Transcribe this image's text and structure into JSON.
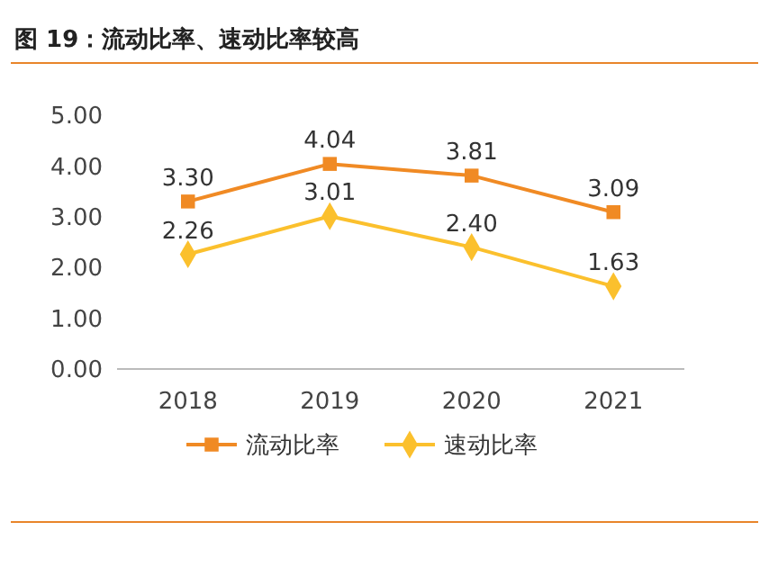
{
  "chart_data": {
    "type": "line",
    "title": "图 19：流动比率、速动比率较高",
    "categories": [
      "2018",
      "2019",
      "2020",
      "2021"
    ],
    "series": [
      {
        "name": "流动比率",
        "color": "#f08a24",
        "values": [
          3.3,
          4.04,
          3.81,
          3.09
        ],
        "value_labels": [
          "3.30",
          "4.04",
          "3.81",
          "3.09"
        ],
        "marker": "square"
      },
      {
        "name": "速动比率",
        "color": "#fbc02d",
        "values": [
          2.26,
          3.01,
          2.4,
          1.63
        ],
        "value_labels": [
          "2.26",
          "3.01",
          "2.40",
          "1.63"
        ],
        "marker": "diamond"
      }
    ],
    "ylim": [
      0,
      5
    ],
    "yticks": [
      {
        "value": 0,
        "label": "0.00"
      },
      {
        "value": 1,
        "label": "1.00"
      },
      {
        "value": 2,
        "label": "2.00"
      },
      {
        "value": 3,
        "label": "3.00"
      },
      {
        "value": 4,
        "label": "4.00"
      },
      {
        "value": 5,
        "label": "5.00"
      }
    ],
    "legend": "bottom",
    "grid": false,
    "line_style": "solid"
  }
}
